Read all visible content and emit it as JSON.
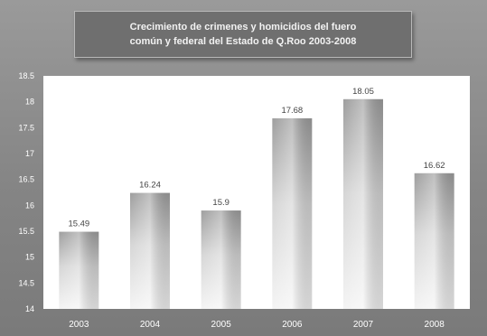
{
  "chart_data": {
    "type": "bar",
    "title_line1": "Crecimiento de crimenes y homicidios del fuero",
    "title_line2": "común y federal del Estado de Q.Roo 2003-2008",
    "categories": [
      "2003",
      "2004",
      "2005",
      "2006",
      "2007",
      "2008"
    ],
    "values": [
      15.49,
      16.24,
      15.9,
      17.68,
      18.05,
      16.62
    ],
    "data_labels": [
      "15.49",
      "16.24",
      "15.9",
      "17.68",
      "18.05",
      "16.62"
    ],
    "y_ticks": [
      "14",
      "14.5",
      "15",
      "15.5",
      "16",
      "16.5",
      "17",
      "17.5",
      "18",
      "18.5"
    ],
    "ylim": [
      14,
      18.5
    ],
    "grid": false,
    "legend": "none"
  }
}
